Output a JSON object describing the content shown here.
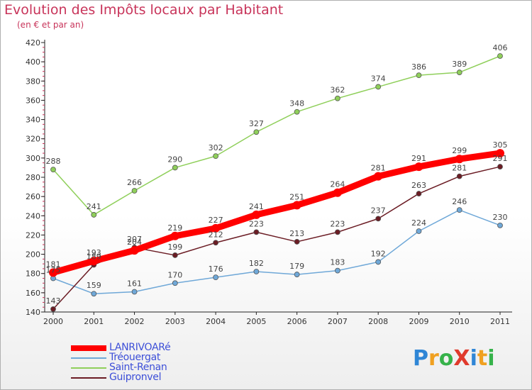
{
  "title": "Evolution des Impôts locaux par Habitant",
  "subtitle": "(en € et par an)",
  "logo": {
    "text": "ProXiti",
    "letters": [
      {
        "ch": "P",
        "color": "#2f86d6"
      },
      {
        "ch": "r",
        "color": "#f0a020"
      },
      {
        "ch": "o",
        "color": "#36b24a"
      },
      {
        "ch": "X",
        "color": "#e03a2c"
      },
      {
        "ch": "i",
        "color": "#2f86d6"
      },
      {
        "ch": "t",
        "color": "#f0a020"
      },
      {
        "ch": "i",
        "color": "#36b24a"
      }
    ]
  },
  "chart_data": {
    "type": "line",
    "title": "Evolution des Impôts locaux par Habitant",
    "subtitle": "(en € et par an)",
    "xlabel": "",
    "ylabel": "",
    "x": [
      "2000",
      "2001",
      "2002",
      "2003",
      "2004",
      "2005",
      "2006",
      "2007",
      "2008",
      "2009",
      "2010",
      "2011"
    ],
    "ylim": [
      140,
      420
    ],
    "yticks": [
      140,
      160,
      180,
      200,
      220,
      240,
      260,
      280,
      300,
      320,
      340,
      360,
      380,
      400,
      420
    ],
    "grid": false,
    "legend_position": "bottom-left",
    "series": [
      {
        "name": "Saint-Renan",
        "color": "#8fcf5a",
        "values": [
          288,
          241,
          266,
          290,
          302,
          327,
          348,
          362,
          374,
          386,
          389,
          406
        ]
      },
      {
        "name": "Tréouergat",
        "color": "#6fa8d8",
        "values": [
          175,
          159,
          161,
          170,
          176,
          182,
          179,
          183,
          192,
          224,
          246,
          230
        ]
      },
      {
        "name": "Guipronvel",
        "color": "#6b1c24",
        "values": [
          143,
          189,
          207,
          199,
          212,
          223,
          213,
          223,
          237,
          263,
          281,
          291
        ]
      },
      {
        "name": "LANRIVOARé",
        "color": "#ff0000",
        "values": [
          181,
          193,
          204,
          219,
          227,
          241,
          251,
          264,
          281,
          291,
          299,
          305
        ]
      }
    ],
    "legend_order": [
      "LANRIVOARé",
      "Tréouergat",
      "Saint-Renan",
      "Guipronvel"
    ]
  }
}
